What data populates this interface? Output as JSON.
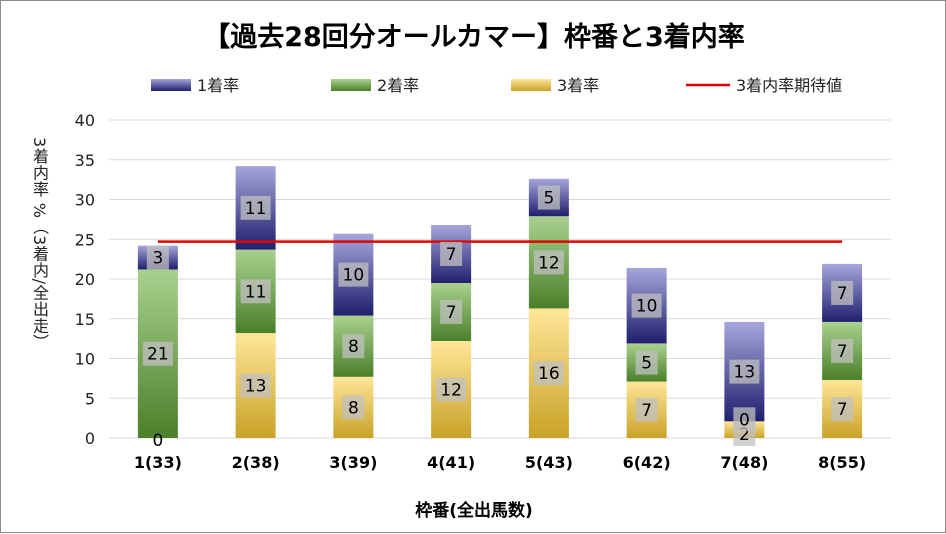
{
  "chart_data": {
    "type": "bar",
    "stacked": true,
    "title": "【過去28回分オールカマー】枠番と3着内率",
    "xlabel": "枠番(全出馬数)",
    "ylabel": "3着内率 %（3着内/全出走）",
    "categories": [
      "1(33)",
      "2(38)",
      "3(39)",
      "4(41)",
      "5(43)",
      "6(42)",
      "7(48)",
      "8(55)"
    ],
    "ylim": [
      0,
      40
    ],
    "yticks": [
      0,
      5,
      10,
      15,
      20,
      25,
      30,
      35,
      40
    ],
    "grid": true,
    "legend_position": "top",
    "series": [
      {
        "name": "3着率",
        "key": "third",
        "values": [
          0.0,
          13.2,
          7.7,
          12.2,
          16.3,
          7.1,
          2.1,
          7.3
        ],
        "labels": [
          "",
          "13",
          "8",
          "12",
          "16",
          "7",
          "2",
          "7"
        ],
        "color_top": "#ffe699",
        "color_bottom": "#c9a227"
      },
      {
        "name": "2着率",
        "key": "second",
        "values": [
          21.2,
          10.5,
          7.7,
          7.3,
          11.6,
          4.8,
          0.0,
          7.3
        ],
        "labels": [
          "21",
          "11",
          "8",
          "7",
          "12",
          "5",
          "",
          "7"
        ],
        "color_top": "#a9d18e",
        "color_bottom": "#4b7f2a"
      },
      {
        "name": "1着率",
        "key": "first",
        "values": [
          3.0,
          10.5,
          10.3,
          7.3,
          4.7,
          9.5,
          12.5,
          7.3
        ],
        "labels": [
          "3",
          "11",
          "10",
          "7",
          "5",
          "10",
          "13",
          "7"
        ],
        "color_top": "#a6a6dc",
        "color_bottom": "#1f1f6e"
      }
    ],
    "extra_labels": [
      {
        "category_index": 0,
        "text": "0",
        "at_value": 0.0
      },
      {
        "category_index": 6,
        "text": "0",
        "at_value": 2.1
      }
    ],
    "reference_line": {
      "name": "3着内率期待値",
      "value": 24.7,
      "color": "#e00000"
    },
    "label_box_color": "#c0c0c0"
  }
}
